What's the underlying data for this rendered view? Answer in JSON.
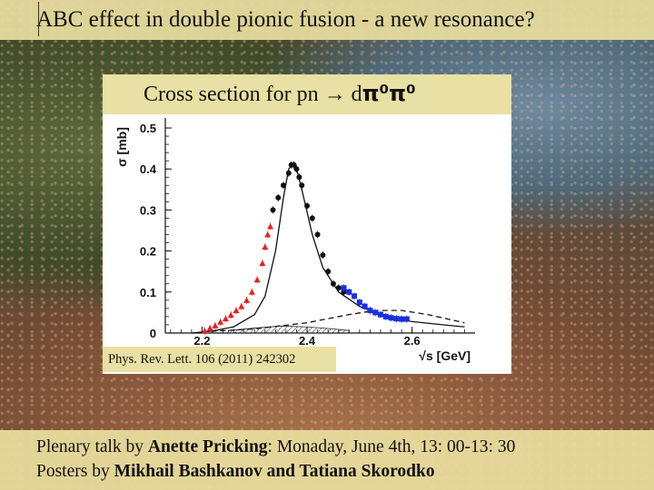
{
  "slide": {
    "title": "ABC effect in double pionic fusion -  a new resonance?",
    "chart_heading_prefix": "Cross section for pn → d",
    "chart_heading_particles": "π⁰π⁰",
    "reference": "Phys. Rev. Lett. 106 (2011) 242302",
    "footer": {
      "line1_prefix": "Plenary talk by ",
      "line1_name": "Anette Pricking",
      "line1_suffix": ": Monaday, June 4th, 13: 00-13: 30",
      "line2_prefix": "Posters by ",
      "line2_names": "Mikhail Bashkanov and Tatiana Skorodko"
    }
  },
  "chart_data": {
    "type": "scatter",
    "title": "Cross section for pn → dπ⁰π⁰",
    "xlabel": "√s [GeV]",
    "ylabel": "σ [mb]",
    "xlim": [
      2.13,
      2.72
    ],
    "ylim": [
      0,
      0.52
    ],
    "xticks": [
      "2.2",
      "2.4",
      "2.6"
    ],
    "xtick_values": [
      2.2,
      2.4,
      2.6
    ],
    "yticks": [
      "0",
      "0.1",
      "0.2",
      "0.3",
      "0.4",
      "0.5"
    ],
    "ytick_values": [
      0,
      0.1,
      0.2,
      0.3,
      0.4,
      0.5
    ],
    "colors": {
      "red": "#e8201c",
      "black": "#111111",
      "blue": "#1a2fe0"
    },
    "series": [
      {
        "color": "red",
        "marker": "triangle",
        "x": [
          2.205,
          2.215,
          2.225,
          2.235,
          2.245,
          2.255,
          2.265,
          2.275,
          2.285,
          2.295,
          2.305,
          2.315,
          2.32,
          2.325,
          2.33
        ],
        "y": [
          0.005,
          0.012,
          0.018,
          0.027,
          0.035,
          0.044,
          0.055,
          0.065,
          0.08,
          0.1,
          0.13,
          0.17,
          0.21,
          0.24,
          0.26
        ]
      },
      {
        "color": "black",
        "marker": "dot",
        "x": [
          2.335,
          2.345,
          2.355,
          2.365,
          2.37,
          2.375,
          2.38,
          2.385,
          2.39,
          2.4,
          2.41,
          2.42,
          2.43,
          2.44,
          2.45,
          2.46,
          2.47
        ],
        "y": [
          0.3,
          0.33,
          0.36,
          0.39,
          0.41,
          0.41,
          0.4,
          0.38,
          0.36,
          0.31,
          0.28,
          0.24,
          0.19,
          0.15,
          0.12,
          0.11,
          0.1
        ]
      },
      {
        "color": "blue",
        "marker": "square",
        "x": [
          2.47,
          2.48,
          2.49,
          2.5,
          2.51,
          2.52,
          2.53,
          2.54,
          2.55,
          2.56,
          2.57,
          2.58,
          2.59
        ],
        "y": [
          0.11,
          0.1,
          0.09,
          0.075,
          0.065,
          0.055,
          0.05,
          0.045,
          0.04,
          0.037,
          0.035,
          0.034,
          0.034
        ]
      }
    ],
    "curves": [
      {
        "style": "solid",
        "x": [
          2.18,
          2.22,
          2.26,
          2.3,
          2.32,
          2.34,
          2.355,
          2.365,
          2.372,
          2.38,
          2.39,
          2.41,
          2.43,
          2.46,
          2.5,
          2.55,
          2.6,
          2.66,
          2.7
        ],
        "y": [
          0,
          0.005,
          0.015,
          0.045,
          0.09,
          0.2,
          0.33,
          0.4,
          0.41,
          0.4,
          0.35,
          0.24,
          0.16,
          0.1,
          0.065,
          0.04,
          0.028,
          0.02,
          0.015
        ]
      },
      {
        "style": "dashed",
        "x": [
          2.2,
          2.3,
          2.4,
          2.48,
          2.53,
          2.58,
          2.63,
          2.7
        ],
        "y": [
          0.003,
          0.01,
          0.025,
          0.045,
          0.055,
          0.055,
          0.045,
          0.025
        ]
      },
      {
        "style": "hatched",
        "x": [
          2.25,
          2.3,
          2.35,
          2.4,
          2.45,
          2.48
        ],
        "y": [
          0.006,
          0.012,
          0.017,
          0.015,
          0.01,
          0.006
        ]
      }
    ]
  }
}
